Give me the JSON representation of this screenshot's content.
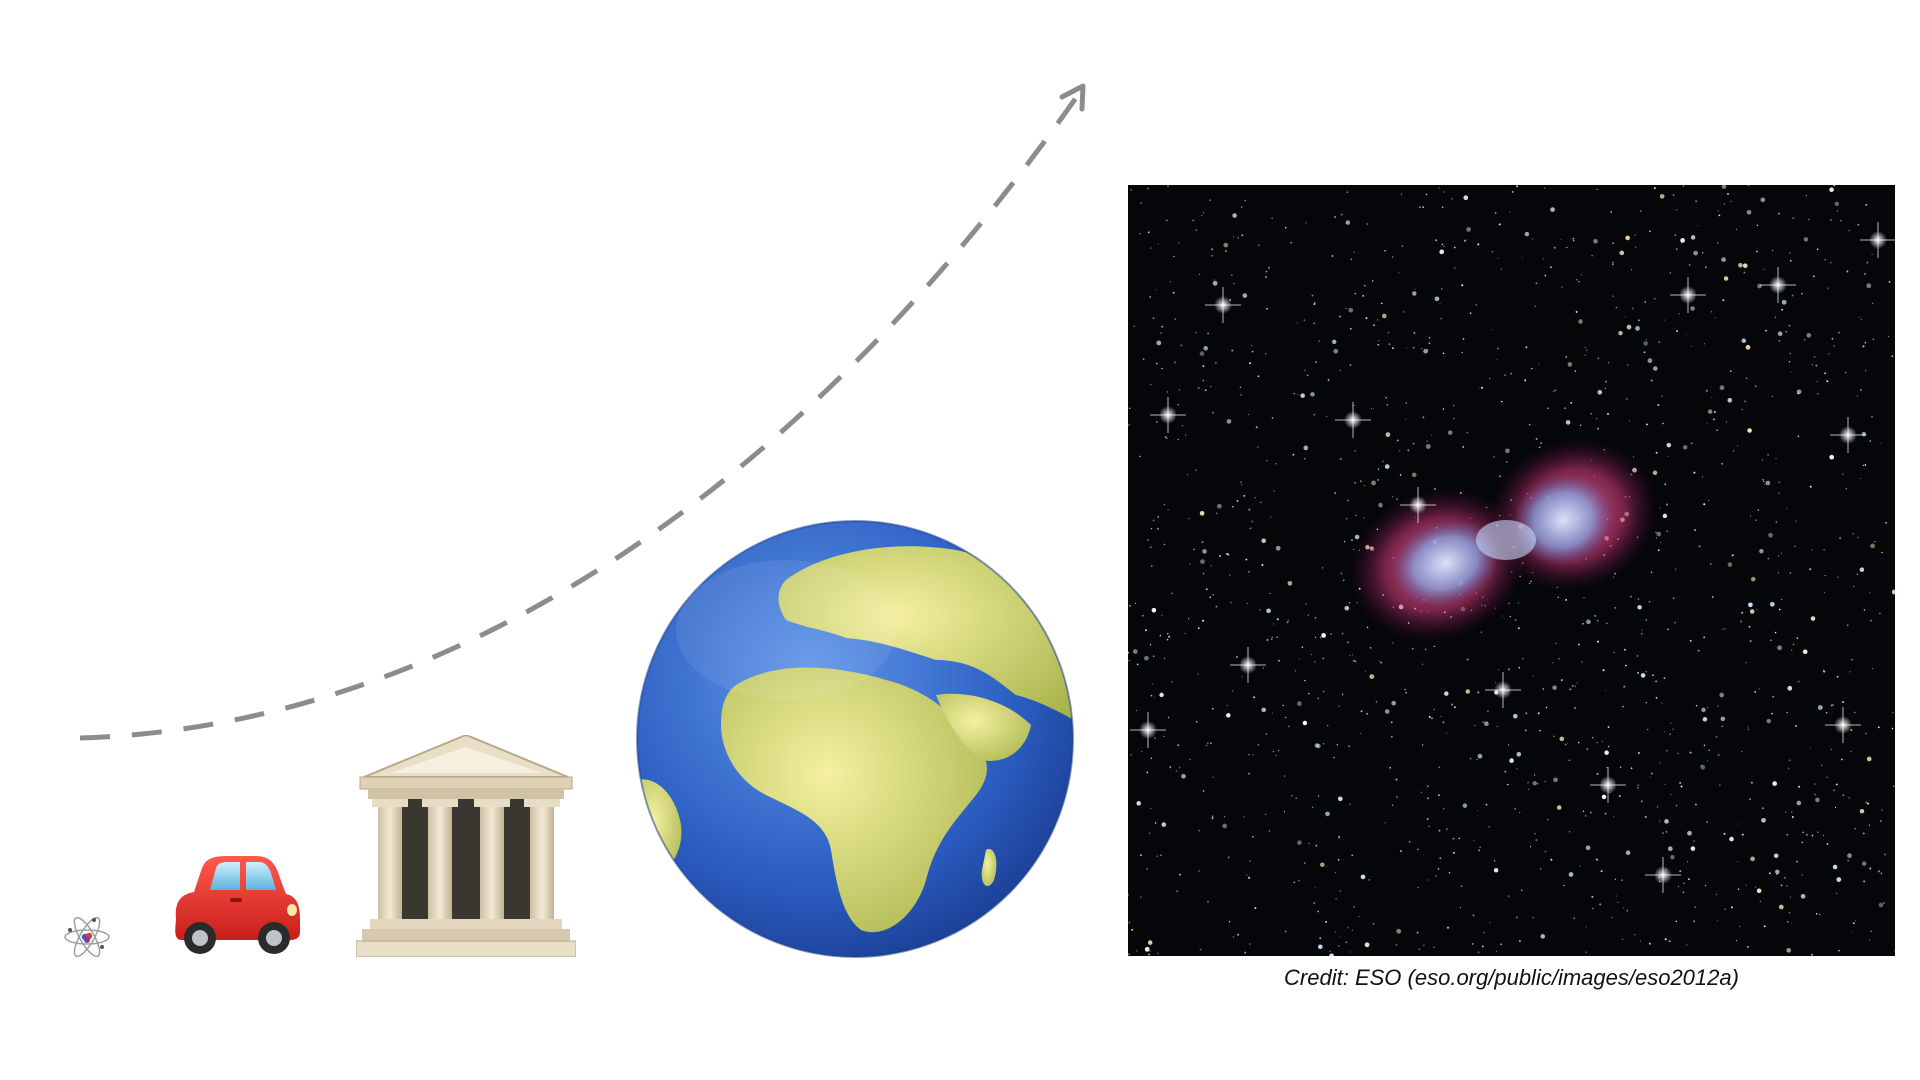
{
  "slide": {
    "credit": "Credit: ESO (eso.org/public/images/eso2012a)"
  },
  "objects": [
    {
      "name": "atom",
      "icon": "atom-icon"
    },
    {
      "name": "car",
      "icon": "red-car-icon"
    },
    {
      "name": "classical-building",
      "icon": "classical-building-icon"
    },
    {
      "name": "earth",
      "icon": "earth-globe-africa-icon"
    },
    {
      "name": "nebula",
      "icon": "planetary-nebula-image"
    }
  ],
  "colors": {
    "arrow": "#8c8c8c",
    "background": "#ffffff",
    "car": "#e8322a",
    "ocean": "#2f64c8",
    "land": "#d8cf6a",
    "nebula_pink": "#e0508a",
    "nebula_blue": "#7fa8e6"
  }
}
